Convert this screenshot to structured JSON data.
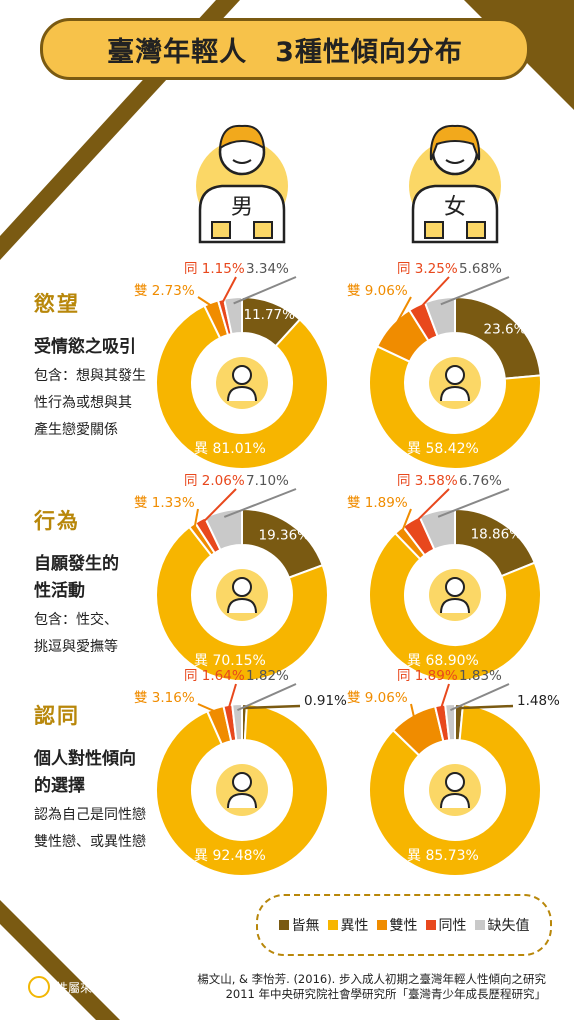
{
  "title": "臺灣年輕人　3種性傾向分布",
  "gender_labels": {
    "male": "男",
    "female": "女"
  },
  "sections": [
    {
      "title": "慾望",
      "subtitle_lines": [
        "受情慾之吸引"
      ],
      "desc_lines": [
        "包含：想與其發生",
        "性行為或想與其",
        "產生戀愛關係"
      ]
    },
    {
      "title": "行為",
      "subtitle_lines": [
        "自願發生的",
        "性活動"
      ],
      "desc_lines": [
        "包含：性交、",
        "挑逗與愛撫等"
      ]
    },
    {
      "title": "認同",
      "subtitle_lines": [
        "個人對性傾向",
        "的選擇"
      ],
      "desc_lines": [
        "認為自己是同性戀",
        "雙性戀、或異性戀"
      ]
    }
  ],
  "legend": [
    {
      "label": "皆無",
      "color": "#7a5a12"
    },
    {
      "label": "異性",
      "color": "#f7b500"
    },
    {
      "label": "雙性",
      "color": "#f08c00"
    },
    {
      "label": "同性",
      "color": "#e8481d"
    },
    {
      "label": "缺失值",
      "color": "#c9c9c9"
    }
  ],
  "chart_data": [
    {
      "type": "pie",
      "section": "慾望",
      "gender": "男",
      "categories": [
        "皆無",
        "異性",
        "雙性",
        "同性",
        "缺失值"
      ],
      "values": [
        11.77,
        81.01,
        2.73,
        1.15,
        3.34
      ],
      "labels": [
        "11.77%",
        "異 81.01%",
        "雙 2.73%",
        "同 1.15%",
        "3.34%"
      ]
    },
    {
      "type": "pie",
      "section": "慾望",
      "gender": "女",
      "categories": [
        "皆無",
        "異性",
        "雙性",
        "同性",
        "缺失值"
      ],
      "values": [
        23.6,
        58.42,
        9.06,
        3.25,
        5.68
      ],
      "labels": [
        "23.6%",
        "異 58.42%",
        "雙 9.06%",
        "同 3.25%",
        "5.68%"
      ]
    },
    {
      "type": "pie",
      "section": "行為",
      "gender": "男",
      "categories": [
        "皆無",
        "異性",
        "雙性",
        "同性",
        "缺失值"
      ],
      "values": [
        19.36,
        70.15,
        1.33,
        2.06,
        7.1
      ],
      "labels": [
        "19.36%",
        "異 70.15%",
        "雙 1.33%",
        "同 2.06%",
        "7.10%"
      ]
    },
    {
      "type": "pie",
      "section": "行為",
      "gender": "女",
      "categories": [
        "皆無",
        "異性",
        "雙性",
        "同性",
        "缺失值"
      ],
      "values": [
        18.86,
        68.9,
        1.89,
        3.58,
        6.76
      ],
      "labels": [
        "18.86%",
        "異 68.90%",
        "雙 1.89%",
        "同 3.58%",
        "6.76%"
      ]
    },
    {
      "type": "pie",
      "section": "認同",
      "gender": "男",
      "categories": [
        "皆無",
        "異性",
        "雙性",
        "同性",
        "缺失值"
      ],
      "values": [
        0.91,
        92.48,
        3.16,
        1.64,
        1.82
      ],
      "labels": [
        "0.91%",
        "異 92.48%",
        "雙 3.16%",
        "同 1.64%",
        "1.82%"
      ]
    },
    {
      "type": "pie",
      "section": "認同",
      "gender": "女",
      "categories": [
        "皆無",
        "異性",
        "雙性",
        "同性",
        "缺失值"
      ],
      "values": [
        1.48,
        85.73,
        9.06,
        1.89,
        1.83
      ],
      "labels": [
        "1.48%",
        "異 85.73%",
        "雙 9.06%",
        "同 1.89%",
        "1.83%"
      ]
    }
  ],
  "source_lines": [
    "楊文山, & 李怡芳. (2016). 步入成人初期之臺灣年輕人性傾向之研究",
    "2011 年中央研究院社會學研究所「臺灣青少年成長歷程研究」"
  ],
  "logo_text": "性屬來了！"
}
